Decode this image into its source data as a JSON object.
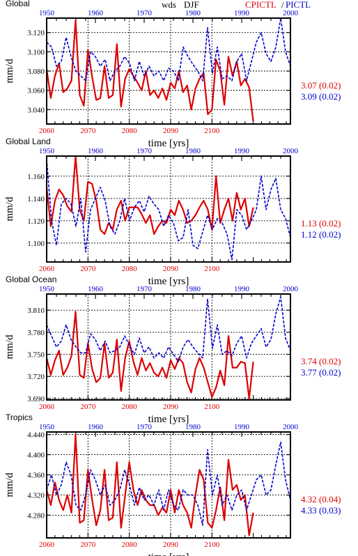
{
  "header": {
    "variable": "wds",
    "season": "DJF",
    "cp_label": "CPICTL",
    "slash": "/",
    "pi_label": "PICTL"
  },
  "colors": {
    "cp": "#dd0000",
    "pi": "#0000cc",
    "grid": "#000000"
  },
  "chart_data": [
    {
      "type": "line",
      "title": "Global",
      "ylabel": "mm/d",
      "xlabel": "time [yrs]",
      "x_bottom": {
        "label_color": "red",
        "range": [
          2060,
          2119
        ],
        "ticks": [
          2060,
          2070,
          2080,
          2090,
          2100
        ]
      },
      "x_top": {
        "label_color": "blue",
        "range": [
          1950,
          2000
        ],
        "ticks": [
          1950,
          1960,
          1970,
          1980,
          1990,
          2000
        ]
      },
      "ylim": [
        3.025,
        3.135
      ],
      "yticks": [
        "3.040",
        "3.060",
        "3.080",
        "3.100",
        "3.120"
      ],
      "grid": true,
      "series": [
        {
          "name": "CPICTL",
          "axis": "bottom",
          "color": "red",
          "x_start": 2060,
          "values": [
            3.082,
            3.052,
            3.075,
            3.088,
            3.058,
            3.062,
            3.07,
            3.133,
            3.055,
            3.044,
            3.102,
            3.074,
            3.05,
            3.052,
            3.085,
            3.052,
            3.055,
            3.108,
            3.043,
            3.072,
            3.082,
            3.075,
            3.068,
            3.06,
            3.08,
            3.055,
            3.06,
            3.052,
            3.062,
            3.05,
            3.068,
            3.062,
            3.08,
            3.058,
            3.065,
            3.04,
            3.062,
            3.072,
            3.078,
            3.035,
            3.04,
            3.092,
            3.08,
            3.045,
            3.095,
            3.075,
            3.09,
            3.065,
            3.072,
            3.063,
            3.028
          ]
        },
        {
          "name": "PICTL",
          "axis": "top",
          "color": "blue",
          "x_start": 1950,
          "values": [
            3.11,
            3.105,
            3.085,
            3.09,
            3.115,
            3.095,
            3.08,
            3.075,
            3.07,
            3.1,
            3.095,
            3.085,
            3.092,
            3.07,
            3.08,
            3.085,
            3.095,
            3.088,
            3.07,
            3.09,
            3.075,
            3.085,
            3.075,
            3.08,
            3.07,
            3.083,
            3.08,
            3.07,
            3.105,
            3.095,
            3.087,
            3.08,
            3.07,
            3.125,
            3.078,
            3.105,
            3.072,
            3.075,
            3.07,
            3.09,
            3.098,
            3.07,
            3.09,
            3.11,
            3.12,
            3.098,
            3.09,
            3.105,
            3.135,
            3.1,
            3.085
          ]
        }
      ],
      "stats": {
        "cp": "3.07 (0.02)",
        "pi": "3.09 (0.02)"
      }
    },
    {
      "type": "line",
      "title": "Global Land",
      "ylabel": "mm/d",
      "xlabel": "time [yrs]",
      "x_bottom": {
        "label_color": "red",
        "range": [
          2060,
          2119
        ],
        "ticks": [
          2060,
          2070,
          2080,
          2090,
          2100
        ]
      },
      "x_top": {
        "label_color": "blue",
        "range": [
          1950,
          2000
        ],
        "ticks": [
          1950,
          1960,
          1970,
          1980,
          1990,
          2000
        ]
      },
      "ylim": [
        1.083,
        1.178
      ],
      "yticks": [
        "1.100",
        "1.120",
        "1.140",
        "1.160"
      ],
      "grid": true,
      "series": [
        {
          "name": "CPICTL",
          "axis": "bottom",
          "color": "red",
          "x_start": 2060,
          "values": [
            1.15,
            1.115,
            1.138,
            1.148,
            1.143,
            1.133,
            1.128,
            1.178,
            1.13,
            1.12,
            1.155,
            1.153,
            1.138,
            1.112,
            1.108,
            1.118,
            1.112,
            1.13,
            1.138,
            1.12,
            1.132,
            1.132,
            1.132,
            1.126,
            1.118,
            1.125,
            1.108,
            1.115,
            1.12,
            1.118,
            1.13,
            1.125,
            1.138,
            1.13,
            1.118,
            1.12,
            1.125,
            1.132,
            1.138,
            1.13,
            1.112,
            1.16,
            1.118,
            1.13,
            1.14,
            1.12,
            1.145,
            1.13,
            1.14,
            1.115,
            1.132
          ]
        },
        {
          "name": "PICTL",
          "axis": "top",
          "color": "blue",
          "x_start": 1950,
          "values": [
            1.175,
            1.12,
            1.098,
            1.135,
            1.14,
            1.135,
            1.115,
            1.14,
            1.092,
            1.13,
            1.14,
            1.15,
            1.138,
            1.115,
            1.108,
            1.12,
            1.14,
            1.12,
            1.132,
            1.138,
            1.128,
            1.142,
            1.135,
            1.13,
            1.115,
            1.125,
            1.118,
            1.102,
            1.105,
            1.13,
            1.098,
            1.095,
            1.11,
            1.125,
            1.112,
            1.122,
            1.118,
            1.108,
            1.085,
            1.13,
            1.125,
            1.112,
            1.12,
            1.13,
            1.16,
            1.13,
            1.148,
            1.158,
            1.13,
            1.122,
            1.105
          ]
        }
      ],
      "stats": {
        "cp": "1.13 (0.02)",
        "pi": "1.12 (0.02)"
      }
    },
    {
      "type": "line",
      "title": "Global Ocean",
      "ylabel": "mm/d",
      "xlabel": "time [yrs]",
      "x_bottom": {
        "label_color": "red",
        "range": [
          2060,
          2119
        ],
        "ticks": [
          2060,
          2070,
          2080,
          2090,
          2100
        ]
      },
      "x_top": {
        "label_color": "blue",
        "range": [
          1950,
          2000
        ],
        "ticks": [
          1950,
          1960,
          1970,
          1980,
          1990,
          2000
        ]
      },
      "ylim": [
        3.688,
        3.832
      ],
      "yticks": [
        "3.690",
        "3.720",
        "3.750",
        "3.780",
        "3.810"
      ],
      "grid": true,
      "series": [
        {
          "name": "CPICTL",
          "axis": "bottom",
          "color": "red",
          "x_start": 2060,
          "values": [
            3.745,
            3.722,
            3.742,
            3.755,
            3.722,
            3.732,
            3.748,
            3.808,
            3.722,
            3.718,
            3.765,
            3.73,
            3.712,
            3.718,
            3.765,
            3.718,
            3.725,
            3.77,
            3.7,
            3.745,
            3.768,
            3.74,
            3.722,
            3.745,
            3.728,
            3.738,
            3.725,
            3.72,
            3.732,
            3.718,
            3.742,
            3.73,
            3.745,
            3.738,
            3.712,
            3.698,
            3.73,
            3.745,
            3.732,
            3.712,
            3.692,
            3.705,
            3.728,
            3.708,
            3.775,
            3.732,
            3.732,
            3.74,
            3.738,
            3.69,
            3.74
          ]
        },
        {
          "name": "PICTL",
          "axis": "top",
          "color": "blue",
          "x_start": 1950,
          "values": [
            3.79,
            3.775,
            3.76,
            3.768,
            3.79,
            3.77,
            3.76,
            3.752,
            3.752,
            3.778,
            3.77,
            3.755,
            3.768,
            3.752,
            3.755,
            3.76,
            3.775,
            3.762,
            3.75,
            3.772,
            3.752,
            3.76,
            3.745,
            3.752,
            3.745,
            3.76,
            3.75,
            3.74,
            3.76,
            3.77,
            3.76,
            3.752,
            3.745,
            3.825,
            3.758,
            3.79,
            3.75,
            3.755,
            3.748,
            3.765,
            3.775,
            3.745,
            3.765,
            3.775,
            3.785,
            3.76,
            3.77,
            3.805,
            3.828,
            3.772,
            3.755
          ]
        }
      ],
      "stats": {
        "cp": "3.74 (0.02)",
        "pi": "3.77 (0.02)"
      }
    },
    {
      "type": "line",
      "title": "Tropics",
      "ylabel": "mm/d",
      "xlabel": "time [yrs]",
      "x_bottom": {
        "label_color": "red",
        "range": [
          2060,
          2119
        ],
        "ticks": [
          2060,
          2070,
          2080,
          2090,
          2100
        ]
      },
      "x_top": {
        "label_color": "blue",
        "range": [
          1950,
          2000
        ],
        "ticks": [
          1950,
          1960,
          1970,
          1980,
          1990,
          2000
        ]
      },
      "ylim": [
        4.235,
        4.445
      ],
      "yticks": [
        "4.280",
        "4.320",
        "4.360",
        "4.400",
        "4.440"
      ],
      "grid": true,
      "series": [
        {
          "name": "CPICTL",
          "axis": "bottom",
          "color": "red",
          "x_start": 2060,
          "values": [
            4.33,
            4.3,
            4.345,
            4.31,
            4.29,
            4.32,
            4.285,
            4.44,
            4.265,
            4.27,
            4.37,
            4.31,
            4.26,
            4.29,
            4.37,
            4.27,
            4.275,
            4.385,
            4.255,
            4.32,
            4.385,
            4.33,
            4.3,
            4.33,
            4.31,
            4.3,
            4.3,
            4.28,
            4.295,
            4.285,
            4.33,
            4.285,
            4.33,
            4.3,
            4.285,
            4.255,
            4.32,
            4.37,
            4.35,
            4.265,
            4.255,
            4.29,
            4.335,
            4.27,
            4.39,
            4.33,
            4.34,
            4.31,
            4.32,
            4.24,
            4.285
          ]
        },
        {
          "name": "PICTL",
          "axis": "top",
          "color": "blue",
          "x_start": 1950,
          "values": [
            4.33,
            4.36,
            4.32,
            4.34,
            4.385,
            4.36,
            4.3,
            4.29,
            4.32,
            4.37,
            4.35,
            4.32,
            4.34,
            4.3,
            4.31,
            4.33,
            4.37,
            4.34,
            4.3,
            4.335,
            4.31,
            4.32,
            4.3,
            4.33,
            4.29,
            4.33,
            4.3,
            4.29,
            4.33,
            4.32,
            4.32,
            4.3,
            4.26,
            4.41,
            4.32,
            4.36,
            4.3,
            4.32,
            4.29,
            4.32,
            4.33,
            4.29,
            4.32,
            4.35,
            4.36,
            4.32,
            4.33,
            4.38,
            4.425,
            4.35,
            4.31
          ]
        }
      ],
      "stats": {
        "cp": "4.32 (0.04)",
        "pi": "4.33 (0.03)"
      }
    }
  ]
}
